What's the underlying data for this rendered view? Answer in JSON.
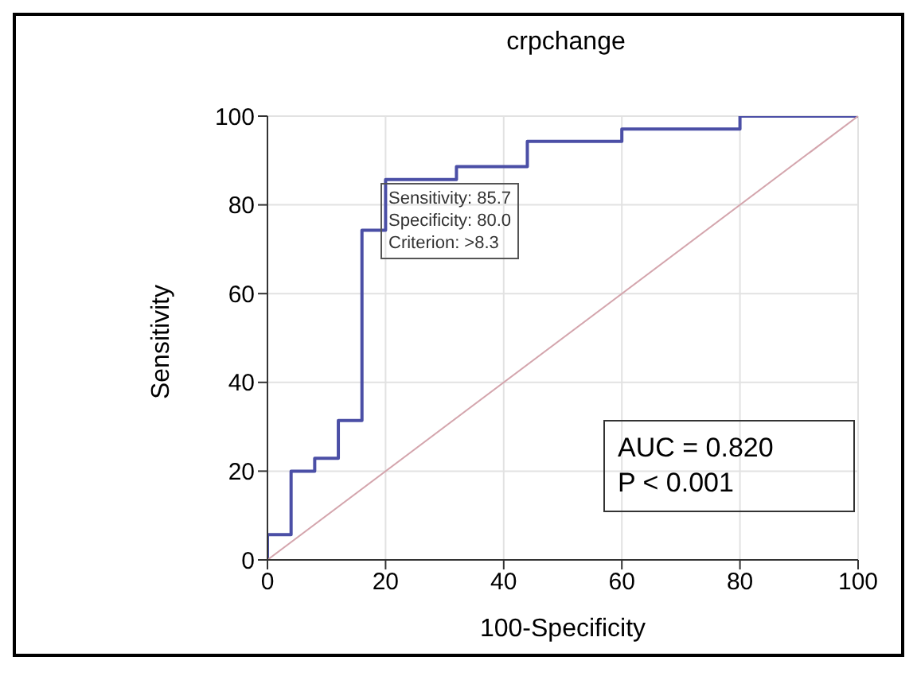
{
  "chart_data": {
    "type": "step",
    "title": "crpchange",
    "xlabel": "100-Specificity",
    "ylabel": "Sensitivity",
    "xlim": [
      0,
      100
    ],
    "ylim": [
      0,
      100
    ],
    "xticks": [
      0,
      20,
      40,
      60,
      80,
      100
    ],
    "yticks": [
      0,
      20,
      40,
      60,
      80,
      100
    ],
    "grid": true,
    "series": [
      {
        "color": "#4b4fa6",
        "x": [
          0,
          0,
          4,
          8,
          12,
          16,
          20,
          32,
          44,
          60,
          80,
          100
        ],
        "values": [
          0,
          5.7,
          20,
          22.9,
          31.4,
          74.3,
          85.7,
          88.6,
          94.3,
          97.1,
          100,
          100
        ]
      },
      {
        "type": "line",
        "color": "#d4a5ad",
        "x": [
          0,
          100
        ],
        "values": [
          0,
          100
        ]
      }
    ],
    "annotations": [
      {
        "text": "Sensitivity: 85.7\nSpecificity: 80.0\nCriterion: >8.3",
        "x": 20,
        "y": 85.7
      },
      "AUC = 0.820\nP < 0.001"
    ]
  }
}
